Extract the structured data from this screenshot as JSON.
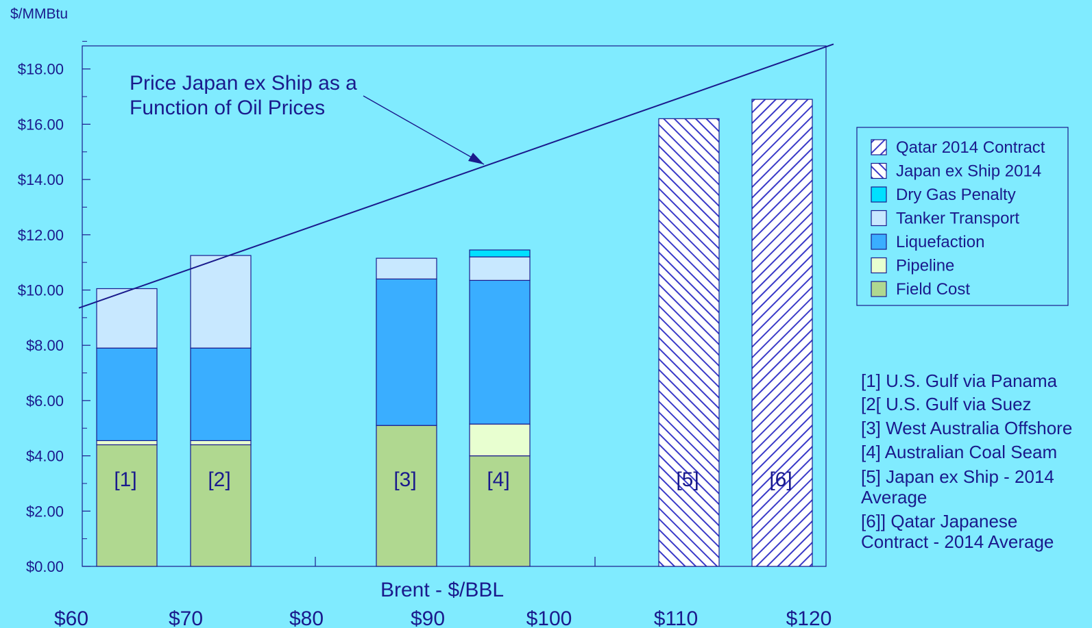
{
  "chart_data": {
    "type": "bar",
    "stacked": true,
    "ylabel": "$/MMBtu",
    "xlabel": "Brent - $/BBL",
    "ylim": [
      0,
      19
    ],
    "y_ticks": [
      "$0.00",
      "$2.00",
      "$4.00",
      "$6.00",
      "$8.00",
      "$10.00",
      "$12.00",
      "$14.00",
      "$16.00",
      "$18.00"
    ],
    "x_axis_labels": [
      "$60",
      "$70",
      "$80",
      "$90",
      "$100",
      "$110",
      "$120"
    ],
    "categories": [
      "[1]",
      "[2]",
      "[3]",
      "[4]",
      "[5]",
      "[6]"
    ],
    "series": [
      {
        "name": "Field Cost",
        "values": [
          4.4,
          4.4,
          5.1,
          4.0,
          0,
          0
        ],
        "color": "#B0D890"
      },
      {
        "name": "Pipeline",
        "values": [
          0.15,
          0.15,
          0,
          1.15,
          0,
          0
        ],
        "color": "#E8FFD0"
      },
      {
        "name": "Liquefaction",
        "values": [
          3.35,
          3.35,
          5.3,
          5.2,
          0,
          0
        ],
        "color": "#3AAEFF"
      },
      {
        "name": "Tanker  Transport",
        "values": [
          2.15,
          3.35,
          0.75,
          0.85,
          0,
          0
        ],
        "color": "#C8E8FF"
      },
      {
        "name": "Dry Gas Penalty",
        "values": [
          0,
          0,
          0,
          0.25,
          0,
          0
        ],
        "color": "#00E0FF"
      },
      {
        "name": "Japan ex Ship 2014",
        "values": [
          0,
          0,
          0,
          0,
          16.2,
          0
        ],
        "pattern": "backslash"
      },
      {
        "name": "Qatar 2014 Contract",
        "values": [
          0,
          0,
          0,
          0,
          0,
          16.9
        ],
        "pattern": "slash"
      }
    ],
    "legend_order": [
      "Qatar 2014 Contract",
      "Japan ex Ship 2014",
      "Dry Gas Penalty",
      "Tanker  Transport",
      "Liquefaction",
      "Pipeline",
      "Field Cost"
    ],
    "line": {
      "label_lines": [
        "Price Japan ex Ship as a",
        "Function of Oil Prices"
      ],
      "start_value": 9.35,
      "end_value": 18.9
    },
    "notes": [
      [
        "[1] U.S. Gulf via Panama"
      ],
      [
        "[2[ U.S. Gulf via Suez"
      ],
      [
        "[3] West Australia Offshore"
      ],
      [
        "[4] Australian Coal Seam"
      ],
      [
        "[5] Japan ex Ship - 2014",
        "Average"
      ],
      [
        "[6]] Qatar Japanese",
        "Contract - 2014 Average"
      ]
    ],
    "colors": {
      "background": "#80EBFF",
      "text": "#1A1A8C",
      "axis": "#1A1A8C"
    },
    "grid": false,
    "legend_position": "right"
  }
}
